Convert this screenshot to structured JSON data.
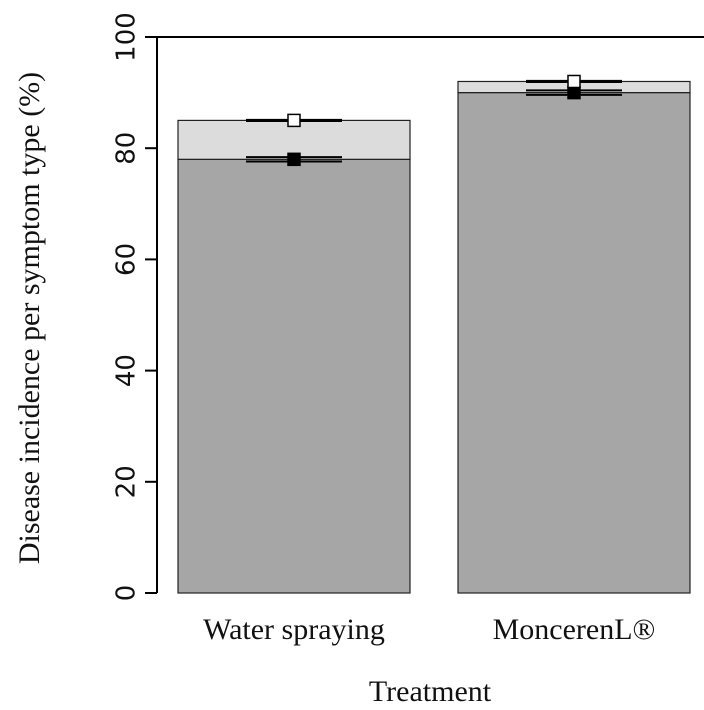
{
  "chart_data": {
    "type": "stacked_bar",
    "y_label": "Disease incidence per symptom type (%)",
    "x_label": "Treatment",
    "categories": [
      "Water spraying",
      "MoncerenL®"
    ],
    "series": [
      {
        "color": "#a6a6a6",
        "marker": "filled-square",
        "values": [
          78,
          90
        ],
        "errors": [
          0.4,
          0.4
        ]
      },
      {
        "color": "#dcdcdc",
        "marker": "open-square",
        "values": [
          7,
          2
        ],
        "errors": [
          0.1,
          0.1
        ]
      }
    ],
    "ylim": [
      0,
      100
    ],
    "yticks": [
      0,
      20,
      40,
      60,
      80,
      100
    ]
  }
}
